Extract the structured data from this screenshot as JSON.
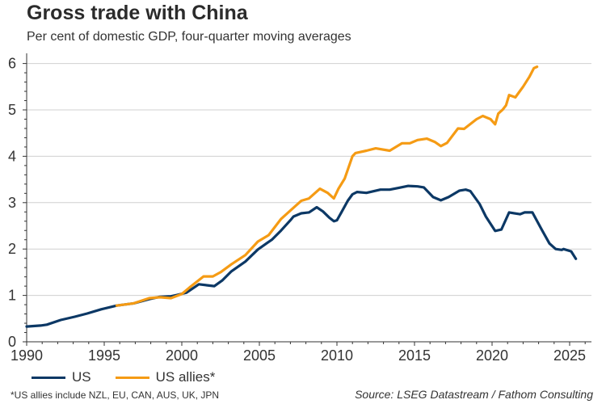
{
  "header": {
    "title": "Gross trade with China",
    "subtitle": "Per cent of domestic GDP, four-quarter moving averages"
  },
  "footer": {
    "footnote": "*US allies include NZL, EU, CAN, AUS, UK, JPN",
    "source": "Source: LSEG Datastream / Fathom Consulting"
  },
  "chart_data": {
    "type": "line",
    "title": "Gross trade with China",
    "subtitle": "Per cent of domestic GDP, four-quarter moving averages",
    "xlabel": "",
    "ylabel": "",
    "xlim": [
      1990,
      2026.4
    ],
    "ylim": [
      0,
      6.2
    ],
    "x_ticks": [
      1990,
      1995,
      2000,
      2005,
      2010,
      2015,
      2020,
      2025
    ],
    "x_tick_labels": [
      "1990",
      "1995",
      "2000",
      "2005",
      "2010",
      "2015",
      "2020",
      "2025"
    ],
    "y_ticks": [
      0,
      1,
      2,
      3,
      4,
      5,
      6
    ],
    "y_tick_labels": [
      "0",
      "1",
      "2",
      "3",
      "4",
      "5",
      "6"
    ],
    "grid": "horizontal",
    "legend_position": "bottom-left",
    "series": [
      {
        "name": "US",
        "color": "#0c3865",
        "x": [
          1990.0,
          1990.9,
          1991.3,
          1992.2,
          1993.1,
          1993.9,
          1994.8,
          1995.8,
          1996.9,
          1997.9,
          1998.6,
          1999.3,
          1999.7,
          2000.3,
          2001.1,
          2001.6,
          2002.1,
          2002.6,
          2003.2,
          2004.1,
          2004.9,
          2005.5,
          2005.8,
          2006.4,
          2007.0,
          2007.2,
          2007.7,
          2008.2,
          2008.7,
          2009.1,
          2009.5,
          2009.8,
          2010.0,
          2010.3,
          2010.7,
          2011.0,
          2011.3,
          2011.9,
          2012.8,
          2013.4,
          2014.0,
          2014.6,
          2015.2,
          2015.6,
          2016.2,
          2016.7,
          2017.2,
          2017.9,
          2018.3,
          2018.6,
          2019.2,
          2019.6,
          2020.2,
          2020.6,
          2021.1,
          2021.8,
          2022.1,
          2022.6,
          2023.2,
          2023.7,
          2024.1,
          2024.5,
          2024.6,
          2025.1,
          2025.4
        ],
        "values": [
          0.33,
          0.35,
          0.37,
          0.47,
          0.54,
          0.61,
          0.7,
          0.78,
          0.83,
          0.92,
          0.97,
          0.98,
          1.01,
          1.06,
          1.24,
          1.22,
          1.2,
          1.32,
          1.52,
          1.73,
          1.99,
          2.13,
          2.2,
          2.4,
          2.62,
          2.7,
          2.77,
          2.79,
          2.9,
          2.81,
          2.68,
          2.6,
          2.62,
          2.8,
          3.04,
          3.18,
          3.23,
          3.21,
          3.28,
          3.28,
          3.32,
          3.36,
          3.35,
          3.33,
          3.12,
          3.05,
          3.12,
          3.26,
          3.28,
          3.25,
          2.97,
          2.7,
          2.39,
          2.42,
          2.79,
          2.75,
          2.79,
          2.79,
          2.42,
          2.12,
          2.0,
          1.98,
          2.0,
          1.95,
          1.79
        ]
      },
      {
        "name": "US allies*",
        "color": "#f59b14",
        "x": [
          1995.8,
          1996.9,
          1997.9,
          1998.6,
          1999.3,
          2000.0,
          2000.5,
          2001.4,
          2002.0,
          2002.5,
          2003.2,
          2004.1,
          2004.9,
          2005.6,
          2006.4,
          2007.0,
          2007.7,
          2008.2,
          2008.9,
          2009.4,
          2009.8,
          2010.1,
          2010.5,
          2011.0,
          2011.2,
          2011.9,
          2012.5,
          2013.4,
          2014.2,
          2014.7,
          2015.2,
          2015.8,
          2016.3,
          2016.7,
          2017.1,
          2017.8,
          2018.2,
          2019.0,
          2019.4,
          2019.9,
          2020.2,
          2020.4,
          2020.7,
          2020.9,
          2021.1,
          2021.5,
          2021.8,
          2022.0,
          2022.4,
          2022.7,
          2022.9
        ],
        "values": [
          0.78,
          0.83,
          0.94,
          0.96,
          0.94,
          1.03,
          1.17,
          1.41,
          1.41,
          1.5,
          1.67,
          1.87,
          2.16,
          2.3,
          2.65,
          2.83,
          3.04,
          3.09,
          3.3,
          3.21,
          3.09,
          3.3,
          3.52,
          4.0,
          4.07,
          4.12,
          4.17,
          4.12,
          4.28,
          4.28,
          4.35,
          4.38,
          4.31,
          4.22,
          4.29,
          4.6,
          4.59,
          4.8,
          4.87,
          4.8,
          4.69,
          4.92,
          5.01,
          5.1,
          5.32,
          5.27,
          5.41,
          5.5,
          5.71,
          5.9,
          5.93
        ]
      }
    ]
  }
}
